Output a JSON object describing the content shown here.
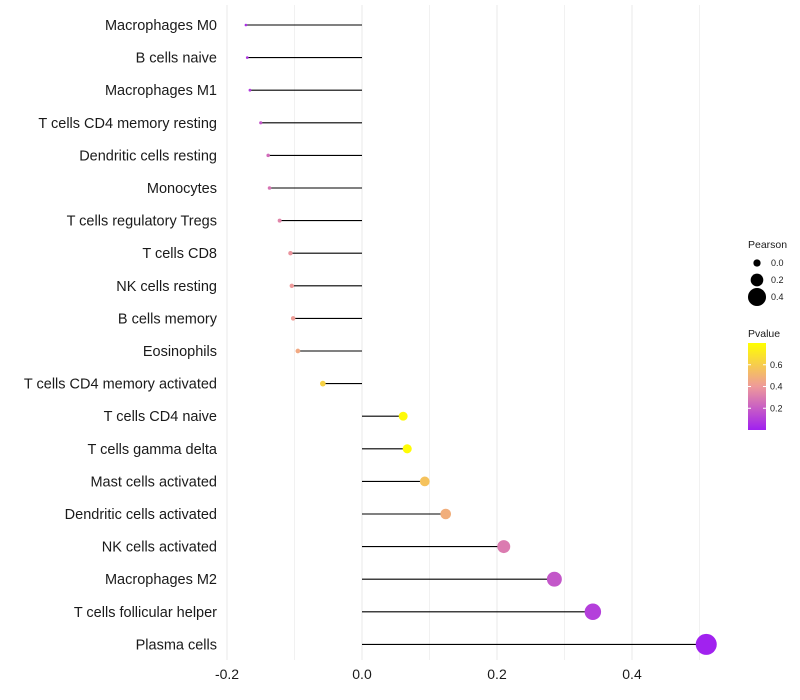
{
  "chart_data": {
    "type": "lollipop",
    "categories": [
      "Macrophages M0",
      "B cells naive",
      "Macrophages M1",
      "T cells CD4 memory resting",
      "Dendritic cells resting",
      "Monocytes",
      "T cells regulatory  Tregs ",
      "T cells CD8",
      "NK cells resting",
      "B cells memory",
      "Eosinophils",
      "T cells CD4 memory activated",
      "T cells CD4 naive",
      "T cells gamma delta",
      "Mast cells activated",
      "Dendritic cells activated",
      "NK cells activated",
      "Macrophages M2",
      "T cells follicular helper",
      "Plasma cells"
    ],
    "pearson": [
      -0.172,
      -0.17,
      -0.166,
      -0.15,
      -0.139,
      -0.137,
      -0.122,
      -0.106,
      -0.104,
      -0.102,
      -0.095,
      -0.058,
      0.061,
      0.067,
      0.093,
      0.124,
      0.21,
      0.285,
      0.342,
      0.51
    ],
    "pvalue": [
      0.05,
      0.07,
      0.09,
      0.18,
      0.25,
      0.28,
      0.33,
      0.38,
      0.4,
      0.41,
      0.46,
      0.62,
      0.78,
      0.79,
      0.56,
      0.48,
      0.3,
      0.18,
      0.1,
      0.005
    ],
    "xaxis": {
      "ticks": [
        "-0.2",
        "0.0",
        "0.2",
        "0.4"
      ],
      "tick_values": [
        -0.2,
        0.0,
        0.2,
        0.4
      ],
      "range": [
        -0.2,
        0.5
      ]
    },
    "legend": {
      "size_title": "Pearson",
      "size_values": [
        0.0,
        0.2,
        0.4
      ],
      "size_labels": [
        "0.0",
        "0.2",
        "0.4"
      ],
      "color_title": "Pvalue",
      "color_labels": [
        "0.6",
        "0.4",
        "0.2"
      ],
      "color_values": [
        0.6,
        0.4,
        0.2
      ],
      "color_range": [
        0.0,
        0.8
      ],
      "color_low": "#a020f0",
      "color_mid": "#ee9a9a",
      "color_high": "#ffff00"
    },
    "grid_color": "#ebebeb",
    "stem_color": "#000000"
  }
}
